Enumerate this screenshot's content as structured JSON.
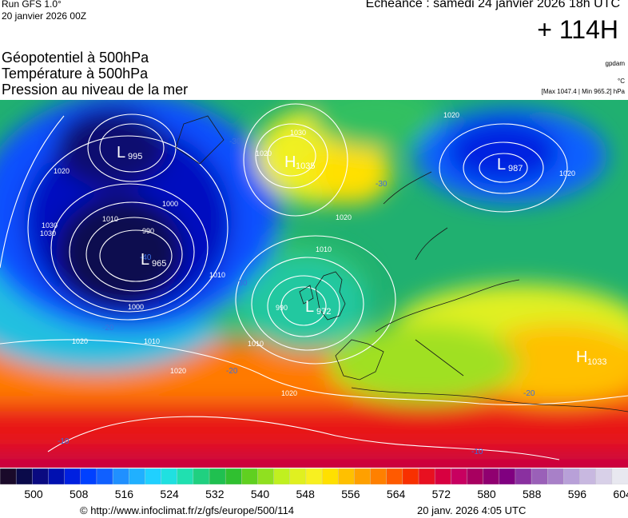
{
  "header": {
    "run": "Run GFS 1.0°",
    "run_date": "20 janvier 2026 00Z",
    "echeance": "Echéance : samedi 24 janvier 2026 18h UTC",
    "lead": "+ 114H",
    "titles": [
      "Géopotentiel à 500hPa",
      "Température à 500hPa",
      "Pression au niveau de la mer"
    ],
    "unit_gpdam": "gpdam",
    "unit_temp": "°C",
    "maxmin": "[Max 1047.4 | Min 965.2] hPa"
  },
  "pressure_centers": [
    {
      "type": "L",
      "value": "995"
    },
    {
      "type": "L",
      "value": "965"
    },
    {
      "type": "H",
      "value": "1035"
    },
    {
      "type": "L",
      "value": "972"
    },
    {
      "type": "L",
      "value": "987"
    },
    {
      "type": "H",
      "value": "1033"
    }
  ],
  "isobar_labels": [
    "1020",
    "1030",
    "1010",
    "1000",
    "990",
    "1000",
    "1010",
    "1020",
    "1030",
    "1020",
    "1020",
    "1010",
    "1020",
    "1010",
    "1020",
    "990",
    "1010",
    "1020",
    "1020",
    "1030"
  ],
  "temp_labels": [
    "-30",
    "-30",
    "-40",
    "-30",
    "-20",
    "-20",
    "-10",
    "-10",
    "-20"
  ],
  "scale": {
    "colors": [
      "#1a0a2a",
      "#0a0a4a",
      "#0a0a80",
      "#0010b0",
      "#0020e0",
      "#0040ff",
      "#1060ff",
      "#2090ff",
      "#20b0ff",
      "#20d0ff",
      "#20e0e0",
      "#20e0b0",
      "#20d080",
      "#20c050",
      "#30c030",
      "#60d020",
      "#90e020",
      "#c0f020",
      "#e0f020",
      "#f8f020",
      "#ffe000",
      "#ffc000",
      "#ffa000",
      "#ff8000",
      "#ff5a00",
      "#f83000",
      "#e81020",
      "#d80040",
      "#c80060",
      "#a80060",
      "#900070",
      "#800080",
      "#8a30a0",
      "#9a60b8",
      "#a880c8",
      "#b8a0d8",
      "#c8b8e0",
      "#d8d0e8",
      "#e8e8f0"
    ],
    "ticks": [
      "500",
      "508",
      "516",
      "524",
      "532",
      "540",
      "548",
      "556",
      "564",
      "572",
      "580",
      "588",
      "596",
      "604"
    ]
  },
  "footer": {
    "copyright": "© http://www.infoclimat.fr/z/gfs/europe/500/114",
    "gen_date": "20 janv. 2026  4:05 UTC"
  }
}
